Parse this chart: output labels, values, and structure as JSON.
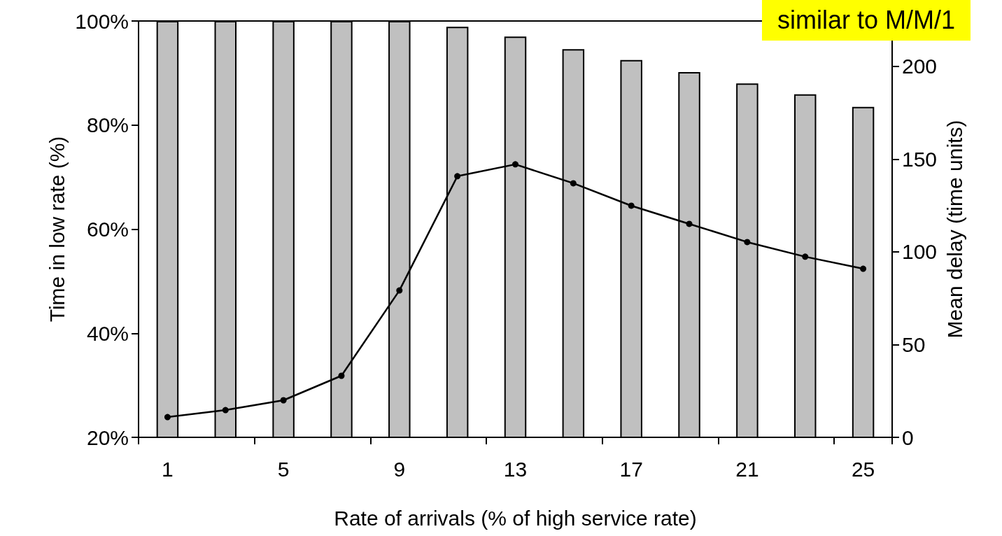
{
  "chart_data": {
    "type": "bar",
    "xlabel": "Rate of arrivals (% of high service rate)",
    "ylabel": "Time in low rate (%)",
    "y2label": "Mean delay (time units)",
    "annotations": [
      "similar to M/M/1"
    ],
    "categories": [
      "1",
      null,
      "5",
      null,
      "9",
      null,
      "13",
      null,
      "17",
      null,
      "21",
      null,
      "25"
    ],
    "series": [
      {
        "color": "#c0c0c0",
        "values": [
          100,
          100,
          100,
          100,
          100,
          98.9,
          97.0,
          94.6,
          92.5,
          90.2,
          88.0,
          85.9,
          83.5
        ]
      },
      {
        "type": "line",
        "axis": "y2",
        "color": "#000000",
        "marker": "circle",
        "line_style": "solid",
        "values": [
          10.9,
          14.7,
          20,
          33.2,
          79.2,
          140.8,
          147.2,
          137,
          124.9,
          115.1,
          105.3,
          97.4,
          90.9
        ]
      }
    ],
    "ylim": [
      20,
      100
    ],
    "yticks": [
      {
        "value": 20,
        "label": "20%"
      },
      {
        "value": 40,
        "label": "40%"
      },
      {
        "value": 60,
        "label": "60%"
      },
      {
        "value": 80,
        "label": "80%"
      },
      {
        "value": 100,
        "label": "100%"
      }
    ],
    "y2lim": [
      0,
      224.5
    ],
    "y2ticks": [
      0,
      50,
      100,
      150,
      200
    ],
    "grid": false
  }
}
